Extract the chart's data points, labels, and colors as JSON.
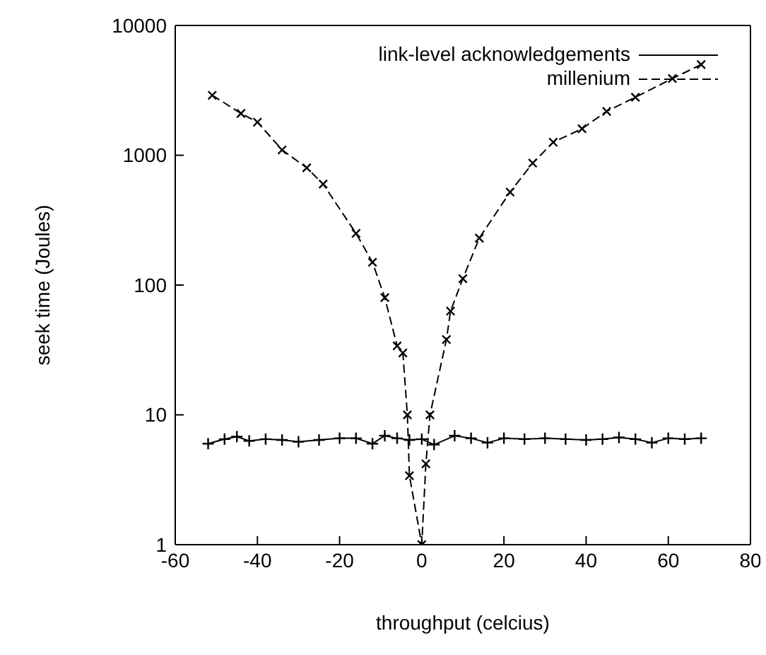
{
  "chart_data": {
    "type": "line",
    "xlabel": "throughput (celcius)",
    "ylabel": "seek time (Joules)",
    "log": "y",
    "xlim": [
      -60,
      80
    ],
    "ylim": [
      1,
      10000
    ],
    "xticks": [
      -60,
      -40,
      -20,
      0,
      20,
      40,
      60,
      80
    ],
    "yticks": [
      1,
      10,
      100,
      1000,
      10000
    ],
    "legend": "top right",
    "series": [
      {
        "name": "link-level acknowledgements",
        "color": "#000000",
        "marker": "cross",
        "line_style": "solid",
        "x": [
          -52,
          -48,
          -45,
          -42,
          -38,
          -34,
          -30,
          -25,
          -20,
          -16,
          -12,
          -9,
          -6,
          -3,
          0,
          3,
          8,
          12,
          16,
          20,
          25,
          30,
          35,
          40,
          44,
          48,
          52,
          56,
          60,
          64,
          68
        ],
        "values": [
          6,
          6.5,
          6.8,
          6.3,
          6.5,
          6.4,
          6.2,
          6.4,
          6.6,
          6.6,
          6.0,
          6.9,
          6.6,
          6.4,
          6.5,
          5.9,
          6.9,
          6.6,
          6.1,
          6.6,
          6.5,
          6.6,
          6.5,
          6.4,
          6.5,
          6.7,
          6.5,
          6.1,
          6.6,
          6.5,
          6.6
        ]
      },
      {
        "name": "millenium",
        "color": "#000000",
        "marker": "cross",
        "line_style": "dashed",
        "x": [
          -51,
          -44,
          -40,
          -34,
          -28,
          -24,
          -16,
          -12,
          -9,
          -6,
          -4.6,
          -3.5,
          -3,
          0,
          1,
          2,
          6,
          7,
          10,
          14,
          21.5,
          27,
          32,
          39,
          45,
          52,
          61,
          68
        ],
        "values": [
          2900,
          2100,
          1800,
          1100,
          800,
          600,
          250,
          150,
          80,
          34,
          30,
          10,
          3.4,
          1,
          4.2,
          10,
          38,
          63,
          112,
          230,
          520,
          870,
          1260,
          1600,
          2180,
          2800,
          3900,
          5000
        ]
      }
    ]
  }
}
